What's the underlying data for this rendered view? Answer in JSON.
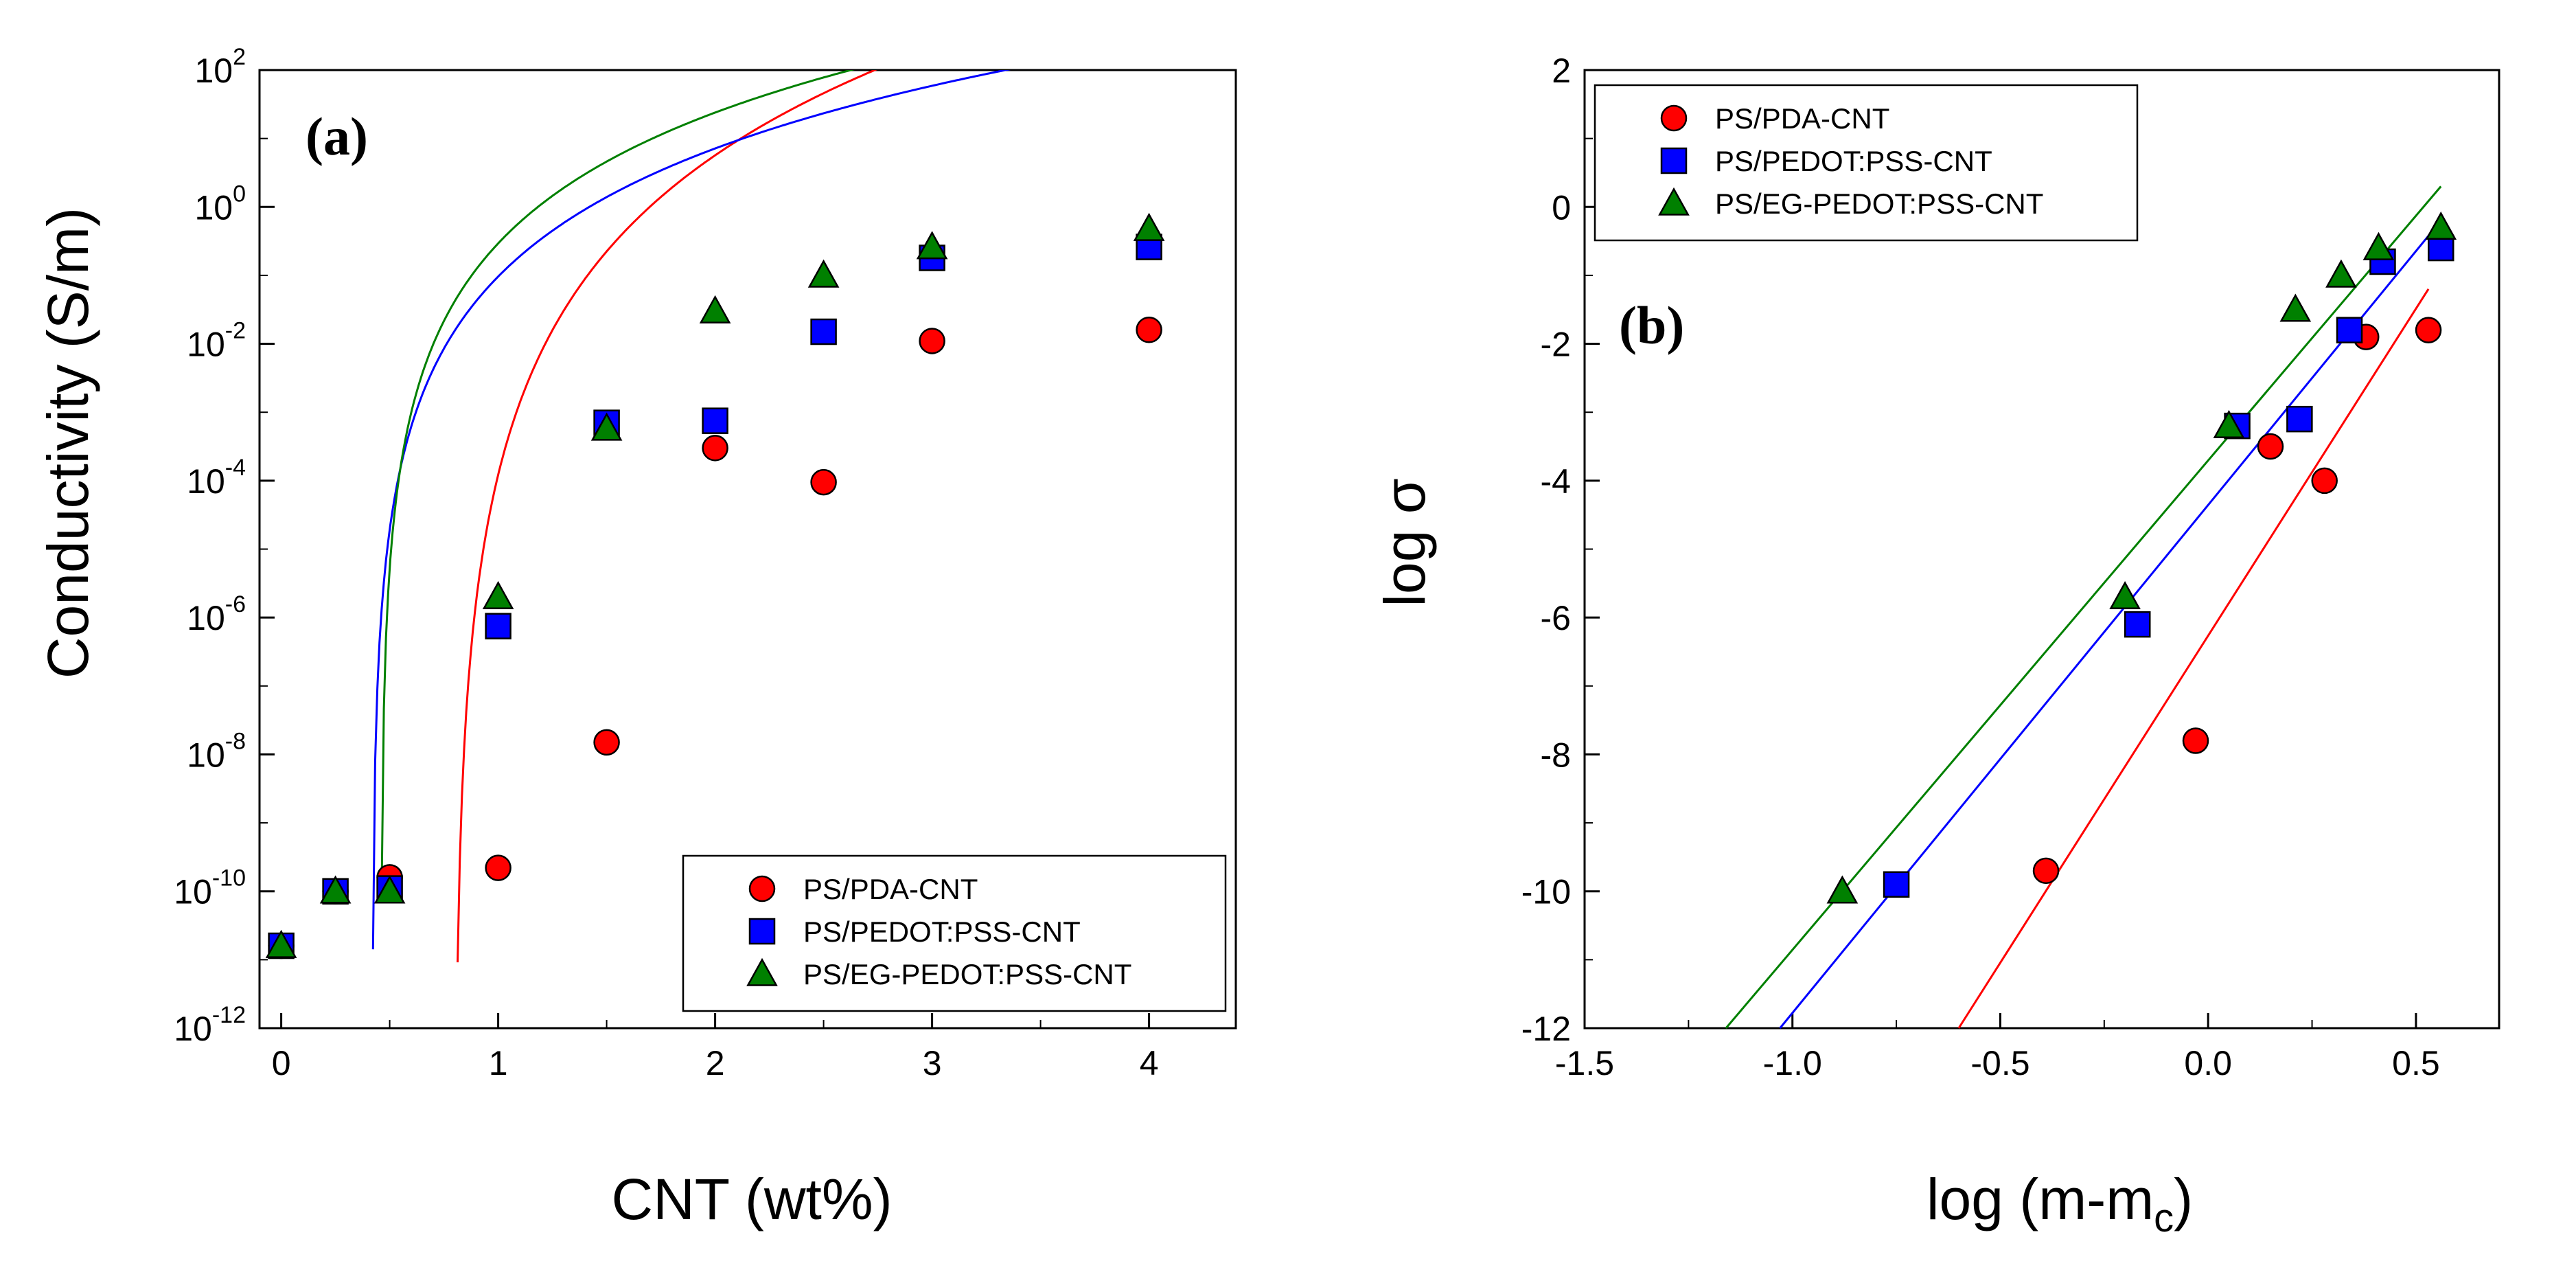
{
  "colors": {
    "PS/PDA-CNT": "#ff0000",
    "PS/PEDOT:PSS-CNT": "#0000ff",
    "PS/EG-PEDOT:PSS-CNT": "#008000",
    "marker_edge": "#000000",
    "axis": "#000000"
  },
  "chart_data": [
    {
      "id": "a",
      "type": "scatter",
      "panel_label": "(a)",
      "xlabel": "CNT (wt%)",
      "ylabel": "Conductivity (S/m)",
      "xlim": [
        -0.1,
        4.4
      ],
      "ylim_exponent": [
        -12,
        2
      ],
      "y_scale": "log",
      "grid": false,
      "legend_position": "bottom-right",
      "x_ticks": [
        0,
        1,
        2,
        3,
        4
      ],
      "x_tick_labels": [
        "0",
        "1",
        "2",
        "3",
        "4"
      ],
      "y_tick_base": "10",
      "y_tick_exponents": [
        "2",
        "0",
        "-2",
        "-4",
        "-6",
        "-8",
        "-10",
        "-12"
      ],
      "series": [
        {
          "name": "PS/PDA-CNT",
          "marker": "circle",
          "x": [
            0,
            0.25,
            0.5,
            1.0,
            1.5,
            2.0,
            2.5,
            3.0,
            4.0
          ],
          "y": [
            1.6e-11,
            1e-10,
            1.6e-10,
            2.2e-10,
            1.5e-08,
            0.0003,
            9.5e-05,
            0.011,
            0.016
          ],
          "fit": {
            "mc": 0.8,
            "t": 6.0,
            "sigma0": 1.9
          }
        },
        {
          "name": "PS/PEDOT:PSS-CNT",
          "marker": "square",
          "x": [
            0,
            0.25,
            0.5,
            1.0,
            1.5,
            2.0,
            2.5,
            3.0,
            4.0
          ],
          "y": [
            1.6e-11,
            1e-10,
            1.1e-10,
            7.5e-07,
            0.0007,
            0.00075,
            0.015,
            0.18,
            0.26
          ],
          "fit": {
            "mc": 0.42,
            "t": 4.3,
            "sigma0": 1.0
          }
        },
        {
          "name": "PS/EG-PEDOT:PSS-CNT",
          "marker": "triangle",
          "x": [
            0,
            0.25,
            0.5,
            1.0,
            1.5,
            2.0,
            2.5,
            3.0,
            4.0
          ],
          "y": [
            1.6e-11,
            1e-10,
            1e-10,
            2e-06,
            0.00058,
            0.03,
            0.1,
            0.26,
            0.48
          ],
          "fit": {
            "mc": 0.46,
            "t": 4.2,
            "sigma0": 3.9
          }
        }
      ]
    },
    {
      "id": "b",
      "type": "scatter",
      "panel_label": "(b)",
      "xlabel": "log (m-m",
      "xlabel_sub": "c",
      "xlabel_close": ")",
      "ylabel": "log σ",
      "xlim": [
        -1.5,
        0.7
      ],
      "ylim": [
        -12,
        2
      ],
      "grid": false,
      "legend_position": "top-left",
      "x_ticks": [
        -1.5,
        -1.0,
        -0.5,
        0.0,
        0.5
      ],
      "x_tick_labels": [
        "-1.5",
        "-1.0",
        "-0.5",
        "0.0",
        "0.5"
      ],
      "y_ticks": [
        2,
        0,
        -2,
        -4,
        -6,
        -8,
        -10,
        -12
      ],
      "y_tick_labels": [
        "2",
        "0",
        "-2",
        "-4",
        "-6",
        "-8",
        "-10",
        "-12"
      ],
      "series": [
        {
          "name": "PS/PDA-CNT",
          "marker": "circle",
          "x": [
            -0.39,
            -0.03,
            0.15,
            0.28,
            0.38,
            0.53
          ],
          "y": [
            -9.7,
            -7.8,
            -3.5,
            -4.0,
            -1.9,
            -1.8
          ],
          "fit": {
            "x": [
              -0.6,
              0.53
            ],
            "y": [
              -12.0,
              -1.2
            ]
          }
        },
        {
          "name": "PS/PEDOT:PSS-CNT",
          "marker": "square",
          "x": [
            -0.75,
            -0.17,
            0.07,
            0.22,
            0.34,
            0.42,
            0.56
          ],
          "y": [
            -9.9,
            -6.1,
            -3.2,
            -3.1,
            -1.8,
            -0.8,
            -0.6
          ],
          "fit": {
            "x": [
              -1.03,
              0.56
            ],
            "y": [
              -12.0,
              -0.2
            ]
          }
        },
        {
          "name": "PS/EG-PEDOT:PSS-CNT",
          "marker": "triangle",
          "x": [
            -0.88,
            -0.2,
            0.05,
            0.21,
            0.32,
            0.41,
            0.56
          ],
          "y": [
            -10.0,
            -5.7,
            -3.2,
            -1.5,
            -1.0,
            -0.6,
            -0.3
          ],
          "fit": {
            "x": [
              -1.16,
              0.56
            ],
            "y": [
              -12.0,
              0.3
            ]
          }
        }
      ]
    }
  ]
}
